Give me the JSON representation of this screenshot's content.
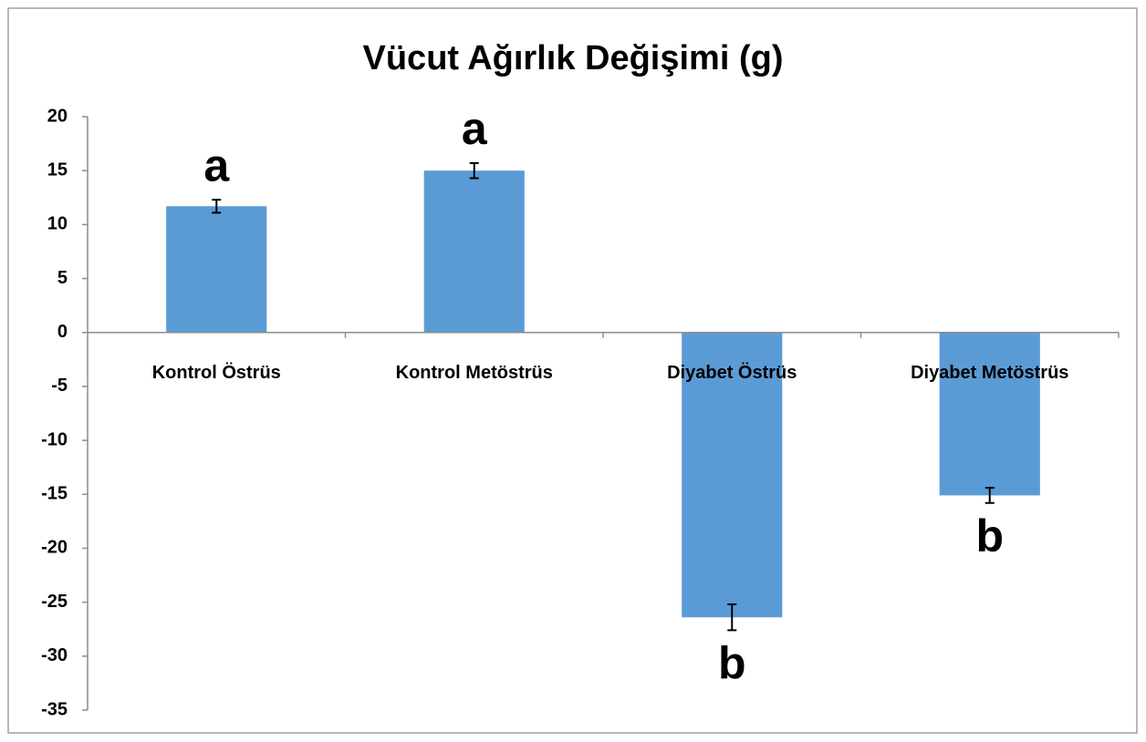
{
  "chart_data": {
    "type": "bar",
    "title": "Vücut Ağırlık Değişimi (g)",
    "categories": [
      "Kontrol Östrüs",
      "Kontrol Metöstrüs",
      "Diyabet Östrüs",
      "Diyabet Metöstrüs"
    ],
    "values": [
      11.7,
      15.0,
      -26.4,
      -15.1
    ],
    "errors": [
      0.6,
      0.7,
      1.2,
      0.7
    ],
    "annotations": [
      "a",
      "a",
      "b",
      "b"
    ],
    "color": "#5b9bd5",
    "ylim": [
      -35,
      20
    ],
    "yticks": [
      -35,
      -30,
      -25,
      -20,
      -15,
      -10,
      -5,
      0,
      5,
      10,
      15,
      20
    ],
    "grid": false
  }
}
